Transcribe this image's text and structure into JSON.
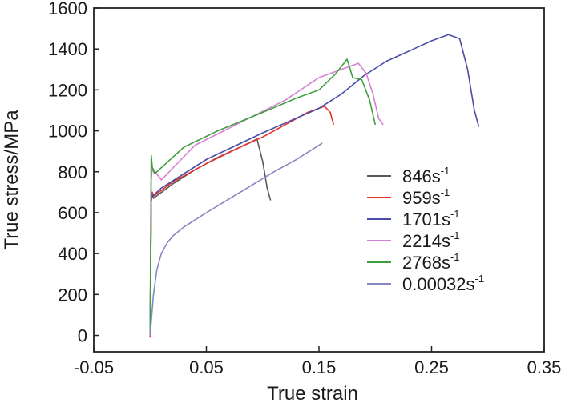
{
  "chart_data": {
    "type": "line",
    "title": "",
    "xlabel": "True strain",
    "ylabel": "True stress/MPa",
    "xlim": [
      -0.05,
      0.35
    ],
    "ylim": [
      -80,
      1600
    ],
    "x_ticks": [
      -0.05,
      0.05,
      0.15,
      0.25,
      0.35
    ],
    "x_tick_labels": [
      "-0.05",
      "0.05",
      "0.15",
      "0.25",
      "0.35"
    ],
    "y_ticks": [
      0,
      200,
      400,
      600,
      800,
      1000,
      1200,
      1400,
      1600
    ],
    "y_tick_labels": [
      "0",
      "200",
      "400",
      "600",
      "800",
      "1000",
      "1200",
      "1400",
      "1600"
    ],
    "grid": false,
    "legend_position": "bottom-right",
    "series": [
      {
        "name": "846",
        "unit_sup": "-1",
        "color": "#5a5a5a",
        "x": [
          0.0,
          0.001,
          0.002,
          0.003,
          0.02,
          0.04,
          0.06,
          0.08,
          0.095,
          0.1,
          0.104,
          0.107
        ],
        "y": [
          0,
          650,
          700,
          670,
          740,
          810,
          870,
          920,
          960,
          850,
          720,
          660
        ]
      },
      {
        "name": "959",
        "unit_sup": "-1",
        "color": "#e8342c",
        "x": [
          0.0,
          0.001,
          0.002,
          0.003,
          0.02,
          0.05,
          0.08,
          0.1,
          0.12,
          0.14,
          0.155,
          0.16,
          0.163
        ],
        "y": [
          -10,
          660,
          700,
          680,
          750,
          840,
          920,
          970,
          1030,
          1090,
          1120,
          1090,
          1030
        ]
      },
      {
        "name": "1701",
        "unit_sup": "-1",
        "color": "#4b4ba8",
        "x": [
          0.0,
          0.001,
          0.002,
          0.01,
          0.05,
          0.1,
          0.15,
          0.17,
          0.19,
          0.21,
          0.23,
          0.25,
          0.265,
          0.275,
          0.282,
          0.288,
          0.292
        ],
        "y": [
          0,
          700,
          680,
          720,
          860,
          990,
          1110,
          1180,
          1270,
          1340,
          1390,
          1440,
          1470,
          1450,
          1300,
          1100,
          1020
        ]
      },
      {
        "name": "2214",
        "unit_sup": "-1",
        "color": "#d77fd4",
        "x": [
          0.0,
          0.001,
          0.002,
          0.01,
          0.04,
          0.08,
          0.12,
          0.15,
          0.17,
          0.185,
          0.192,
          0.198,
          0.203,
          0.207
        ],
        "y": [
          0,
          760,
          820,
          760,
          930,
          1040,
          1150,
          1260,
          1300,
          1330,
          1280,
          1180,
          1060,
          1030
        ]
      },
      {
        "name": "2768",
        "unit_sup": "-1",
        "color": "#3fa03f",
        "x": [
          0.0,
          0.001,
          0.002,
          0.004,
          0.03,
          0.06,
          0.1,
          0.13,
          0.15,
          0.165,
          0.175,
          0.18,
          0.188,
          0.195,
          0.2
        ],
        "y": [
          0,
          880,
          820,
          790,
          920,
          1000,
          1090,
          1160,
          1200,
          1280,
          1350,
          1260,
          1250,
          1150,
          1030
        ]
      },
      {
        "name": "0.00032",
        "unit_sup": "-1",
        "color": "#8686c4",
        "x": [
          0.0,
          0.003,
          0.006,
          0.01,
          0.015,
          0.02,
          0.03,
          0.05,
          0.08,
          0.11,
          0.13,
          0.153
        ],
        "y": [
          0,
          200,
          320,
          400,
          450,
          485,
          530,
          600,
          700,
          800,
          860,
          940
        ]
      }
    ]
  }
}
